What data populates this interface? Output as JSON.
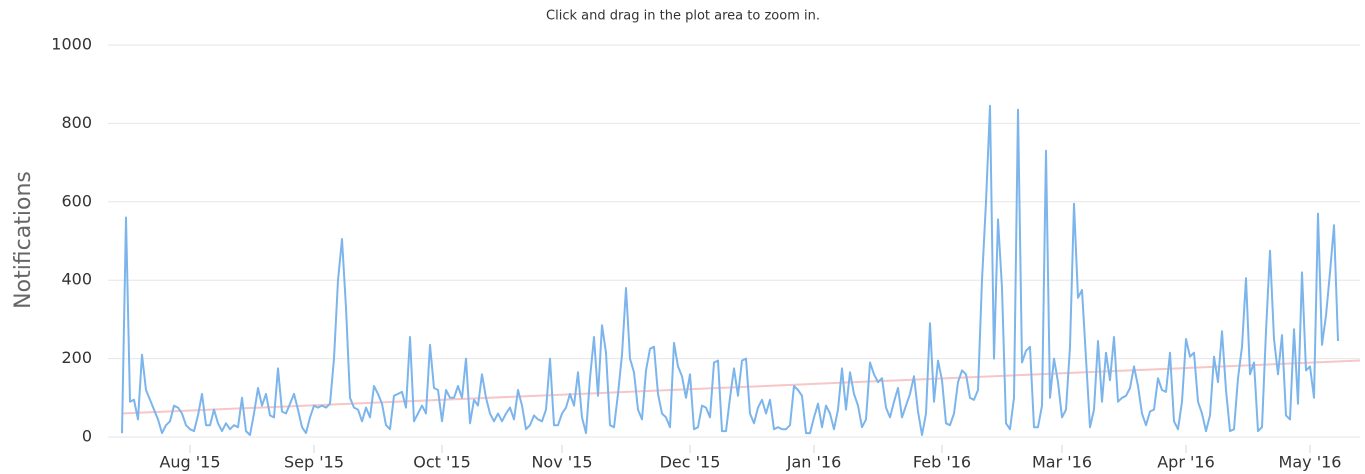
{
  "chart_data": {
    "type": "line",
    "subtitle": "Click and drag in the plot area to zoom in.",
    "y_label": "Notifications",
    "series": [
      {
        "color": "#7cb5ec",
        "values": [
          10,
          560,
          90,
          95,
          45,
          210,
          120,
          95,
          70,
          45,
          10,
          30,
          40,
          80,
          75,
          60,
          30,
          20,
          15,
          55,
          110,
          30,
          30,
          70,
          35,
          15,
          35,
          20,
          30,
          25,
          100,
          15,
          5,
          60,
          125,
          80,
          110,
          55,
          50,
          175,
          65,
          60,
          85,
          110,
          70,
          25,
          10,
          50,
          80,
          75,
          80,
          75,
          85,
          200,
          400,
          505,
          330,
          100,
          75,
          70,
          40,
          75,
          50,
          130,
          110,
          85,
          30,
          20,
          105,
          110,
          115,
          75,
          255,
          40,
          60,
          80,
          60,
          235,
          125,
          120,
          40,
          120,
          100,
          100,
          130,
          100,
          200,
          35,
          95,
          80,
          160,
          100,
          60,
          40,
          60,
          40,
          60,
          75,
          45,
          120,
          80,
          20,
          30,
          55,
          45,
          40,
          70,
          200,
          30,
          30,
          60,
          75,
          110,
          80,
          165,
          50,
          10,
          150,
          255,
          105,
          285,
          215,
          30,
          25,
          110,
          210,
          380,
          200,
          165,
          70,
          45,
          170,
          225,
          230,
          110,
          60,
          50,
          25,
          240,
          180,
          155,
          100,
          160,
          20,
          25,
          80,
          75,
          50,
          190,
          195,
          15,
          15,
          100,
          175,
          105,
          195,
          200,
          60,
          35,
          75,
          95,
          60,
          95,
          20,
          25,
          20,
          20,
          30,
          130,
          120,
          105,
          10,
          10,
          50,
          85,
          25,
          80,
          60,
          20,
          70,
          175,
          70,
          165,
          110,
          80,
          25,
          45,
          190,
          160,
          140,
          150,
          75,
          50,
          90,
          125,
          50,
          80,
          110,
          155,
          65,
          5,
          60,
          290,
          90,
          195,
          145,
          35,
          30,
          60,
          140,
          170,
          160,
          100,
          95,
          120,
          400,
          600,
          845,
          200,
          555,
          380,
          35,
          20,
          100,
          835,
          190,
          220,
          230,
          25,
          25,
          80,
          730,
          100,
          200,
          140,
          50,
          70,
          230,
          595,
          355,
          375,
          200,
          25,
          70,
          245,
          90,
          215,
          145,
          255,
          90,
          100,
          105,
          125,
          180,
          130,
          60,
          30,
          65,
          70,
          150,
          120,
          115,
          215,
          40,
          20,
          90,
          250,
          205,
          215,
          90,
          60,
          15,
          55,
          205,
          140,
          270,
          120,
          15,
          20,
          150,
          230,
          405,
          160,
          190,
          15,
          25,
          270,
          475,
          250,
          160,
          260,
          55,
          45,
          275,
          85,
          420,
          170,
          180,
          100,
          570,
          235,
          310,
          420,
          540,
          245
        ]
      }
    ],
    "trendline": {
      "color": "#f7c6c6",
      "values": [
        60,
        195
      ]
    },
    "xlim": [
      0,
      304
    ],
    "xticks": [
      {
        "value": 17,
        "label": "Aug '15"
      },
      {
        "value": 48,
        "label": "Sep '15"
      },
      {
        "value": 80,
        "label": "Oct '15"
      },
      {
        "value": 110,
        "label": "Nov '15"
      },
      {
        "value": 142,
        "label": "Dec '15"
      },
      {
        "value": 173,
        "label": "Jan '16"
      },
      {
        "value": 205,
        "label": "Feb '16"
      },
      {
        "value": 235,
        "label": "Mar '16"
      },
      {
        "value": 266,
        "label": "Apr '16"
      },
      {
        "value": 297,
        "label": "May '16"
      }
    ],
    "ylim": [
      0,
      1000
    ],
    "yticks": [
      0,
      200,
      400,
      600,
      800,
      1000
    ],
    "grid": true
  }
}
